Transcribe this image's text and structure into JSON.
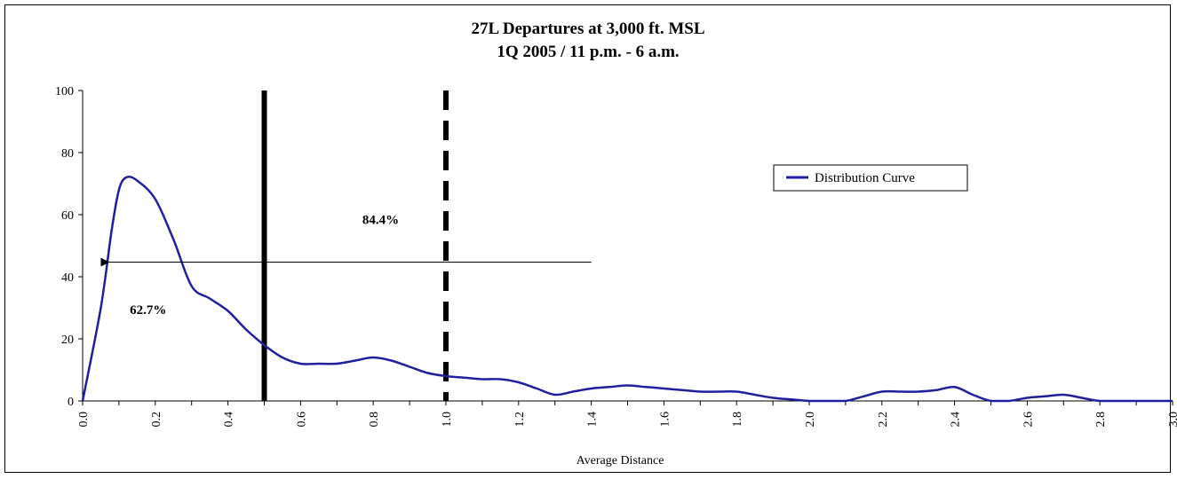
{
  "chart_data": {
    "type": "line",
    "title": "27L Departures at 3,000 ft. MSL",
    "subtitle": "1Q 2005 / 11 p.m. - 6 a.m.",
    "xlabel": "Average Distance",
    "ylabel": "",
    "xlim": [
      0,
      3
    ],
    "ylim": [
      0,
      100
    ],
    "x_ticks": [
      "0.0",
      "0.2",
      "0.4",
      "0.6",
      "0.8",
      "1.0",
      "1.2",
      "1.4",
      "1.6",
      "1.8",
      "2.0",
      "2.2",
      "2.4",
      "2.6",
      "2.8",
      "3.0"
    ],
    "y_ticks": [
      "0",
      "20",
      "40",
      "60",
      "80",
      "100"
    ],
    "grid": false,
    "legend_position": "top-right",
    "series": [
      {
        "name": "Distribution Curve",
        "color": "#1f1fa0",
        "x": [
          0.0,
          0.05,
          0.08,
          0.1,
          0.12,
          0.15,
          0.2,
          0.25,
          0.3,
          0.35,
          0.4,
          0.45,
          0.5,
          0.55,
          0.6,
          0.65,
          0.7,
          0.75,
          0.8,
          0.85,
          0.9,
          0.95,
          1.0,
          1.05,
          1.1,
          1.15,
          1.2,
          1.25,
          1.3,
          1.35,
          1.4,
          1.45,
          1.5,
          1.55,
          1.6,
          1.65,
          1.7,
          1.75,
          1.8,
          1.85,
          1.9,
          1.95,
          2.0,
          2.05,
          2.1,
          2.15,
          2.2,
          2.25,
          2.3,
          2.35,
          2.4,
          2.45,
          2.5,
          2.55,
          2.6,
          2.65,
          2.7,
          2.75,
          2.8,
          2.85,
          2.9,
          2.95,
          3.0
        ],
        "values": [
          0,
          30,
          55,
          68,
          72,
          71,
          65,
          52,
          37,
          33,
          29,
          23,
          18,
          14,
          12,
          12,
          12,
          13,
          14,
          13,
          11,
          9,
          8,
          7.5,
          7,
          7,
          6,
          4,
          2,
          3,
          4,
          4.5,
          5,
          4.5,
          4,
          3.5,
          3,
          3,
          3,
          2,
          1,
          0.5,
          0,
          0,
          0,
          1.5,
          3,
          3,
          3,
          3.5,
          4.5,
          2,
          0,
          0,
          1,
          1.5,
          2,
          1,
          0,
          0,
          0,
          0,
          0
        ]
      }
    ],
    "annotations": [
      {
        "text": "84.4%",
        "x": 0.77,
        "y": 57
      },
      {
        "text": "62.7%",
        "x": 0.13,
        "y": 28
      }
    ],
    "vertical_lines": [
      {
        "x": 0.5,
        "style": "solid"
      },
      {
        "x": 1.0,
        "style": "dashed"
      }
    ],
    "horizontal_arrow": {
      "x_from": 1.4,
      "x_to": 0.05,
      "y": 44.7
    }
  }
}
